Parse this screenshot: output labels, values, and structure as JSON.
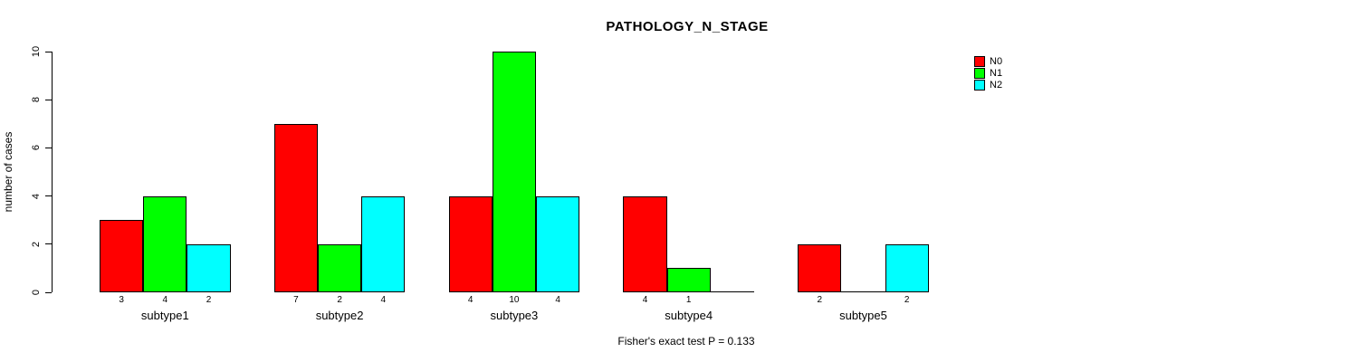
{
  "title": "PATHOLOGY_N_STAGE",
  "ylabel": "number of cases",
  "footer": "Fisher's exact test P = 0.133",
  "legend": {
    "items": [
      {
        "label": "N0",
        "color": "#FF0000"
      },
      {
        "label": "N1",
        "color": "#00FF00"
      },
      {
        "label": "N2",
        "color": "#00FFFF"
      }
    ]
  },
  "chart_data": {
    "type": "bar",
    "title": "PATHOLOGY_N_STAGE",
    "categories": [
      "subtype1",
      "subtype2",
      "subtype3",
      "subtype4",
      "subtype5"
    ],
    "series": [
      {
        "name": "N0",
        "color": "#FF0000",
        "values": [
          3,
          7,
          4,
          4,
          2
        ]
      },
      {
        "name": "N1",
        "color": "#00FF00",
        "values": [
          4,
          2,
          10,
          1,
          0
        ]
      },
      {
        "name": "N2",
        "color": "#00FFFF",
        "values": [
          2,
          4,
          4,
          0,
          2
        ]
      }
    ],
    "xlabel": "",
    "ylabel": "number of cases",
    "ylim": [
      0,
      10
    ],
    "yticks": [
      0,
      2,
      4,
      6,
      8,
      10
    ],
    "grid": false,
    "legend_position": "top-right",
    "bar_value_labels": true,
    "zero_values_drawn_as_baseline_segments": true,
    "annotation": "Fisher's exact test P = 0.133",
    "bar_border_color": "#000000",
    "background_color": "#FFFFFF"
  }
}
